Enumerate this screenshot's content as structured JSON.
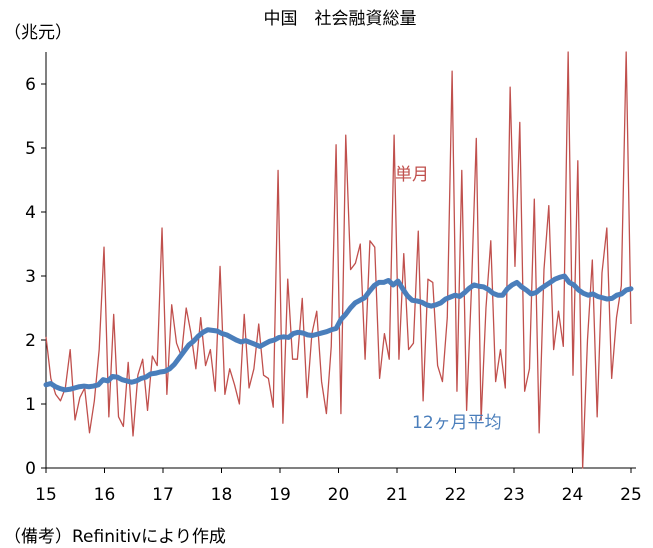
{
  "chart_data": {
    "type": "line",
    "title": "中国　社会融資総量",
    "ylabel": "（兆元）",
    "ylim": [
      0,
      6.5
    ],
    "yticks": [
      "0",
      "1",
      "2",
      "3",
      "4",
      "5",
      "6"
    ],
    "xticks": [
      "15",
      "16",
      "17",
      "18",
      "19",
      "20",
      "21",
      "22",
      "23",
      "24",
      "25"
    ],
    "grid": false,
    "series": [
      {
        "name": "単月",
        "color": "#c0504d",
        "values": [
          2.05,
          1.4,
          1.15,
          1.05,
          1.25,
          1.85,
          0.75,
          1.1,
          1.25,
          0.55,
          1.05,
          1.85,
          3.45,
          0.8,
          2.4,
          0.8,
          0.65,
          1.65,
          0.5,
          1.45,
          1.7,
          0.9,
          1.75,
          1.6,
          3.75,
          1.15,
          2.55,
          1.95,
          1.75,
          2.5,
          2.1,
          1.55,
          2.35,
          1.6,
          1.85,
          1.2,
          3.15,
          1.15,
          1.55,
          1.3,
          1.0,
          2.4,
          1.25,
          1.55,
          2.25,
          1.45,
          1.4,
          0.95,
          4.65,
          0.7,
          2.95,
          1.7,
          1.7,
          2.65,
          1.1,
          2.1,
          2.45,
          1.35,
          0.85,
          1.9,
          5.05,
          0.85,
          5.2,
          3.1,
          3.2,
          3.5,
          1.7,
          3.55,
          3.45,
          1.4,
          2.1,
          1.7,
          5.2,
          1.7,
          3.35,
          1.85,
          1.95,
          3.7,
          1.05,
          2.95,
          2.9,
          1.6,
          1.35,
          2.35,
          6.2,
          1.2,
          4.65,
          0.9,
          2.8,
          5.15,
          0.75,
          2.5,
          3.55,
          1.35,
          1.85,
          1.25,
          5.95,
          3.15,
          5.4,
          1.2,
          1.55,
          4.2,
          0.55,
          3.1,
          4.1,
          1.85,
          2.45,
          1.9,
          6.5,
          1.45,
          4.8,
          0.0,
          2.0,
          3.25,
          0.8,
          3.05,
          3.75,
          1.4,
          2.35,
          2.85,
          7.05,
          2.25
        ]
      },
      {
        "name": "12ヶ月平均",
        "color": "#4a7ebb",
        "values": [
          1.3,
          1.32,
          1.27,
          1.24,
          1.22,
          1.23,
          1.25,
          1.27,
          1.28,
          1.27,
          1.28,
          1.3,
          1.38,
          1.36,
          1.43,
          1.42,
          1.38,
          1.36,
          1.34,
          1.36,
          1.4,
          1.42,
          1.47,
          1.48,
          1.5,
          1.51,
          1.55,
          1.62,
          1.72,
          1.82,
          1.92,
          1.98,
          2.06,
          2.12,
          2.16,
          2.15,
          2.14,
          2.1,
          2.08,
          2.04,
          2.0,
          1.97,
          1.99,
          1.96,
          1.93,
          1.9,
          1.94,
          1.98,
          2.0,
          2.04,
          2.05,
          2.04,
          2.1,
          2.12,
          2.11,
          2.08,
          2.07,
          2.09,
          2.11,
          2.13,
          2.16,
          2.18,
          2.32,
          2.4,
          2.5,
          2.58,
          2.62,
          2.66,
          2.76,
          2.85,
          2.9,
          2.9,
          2.93,
          2.86,
          2.92,
          2.8,
          2.69,
          2.62,
          2.61,
          2.59,
          2.55,
          2.53,
          2.55,
          2.58,
          2.64,
          2.67,
          2.7,
          2.68,
          2.74,
          2.81,
          2.86,
          2.84,
          2.83,
          2.79,
          2.73,
          2.7,
          2.7,
          2.8,
          2.86,
          2.9,
          2.83,
          2.78,
          2.72,
          2.74,
          2.8,
          2.85,
          2.9,
          2.95,
          2.98,
          3.0,
          2.9,
          2.86,
          2.78,
          2.73,
          2.7,
          2.72,
          2.68,
          2.66,
          2.64,
          2.65,
          2.7,
          2.72,
          2.78,
          2.8
        ]
      }
    ]
  },
  "note": "（備考）Refinitivにより作成"
}
